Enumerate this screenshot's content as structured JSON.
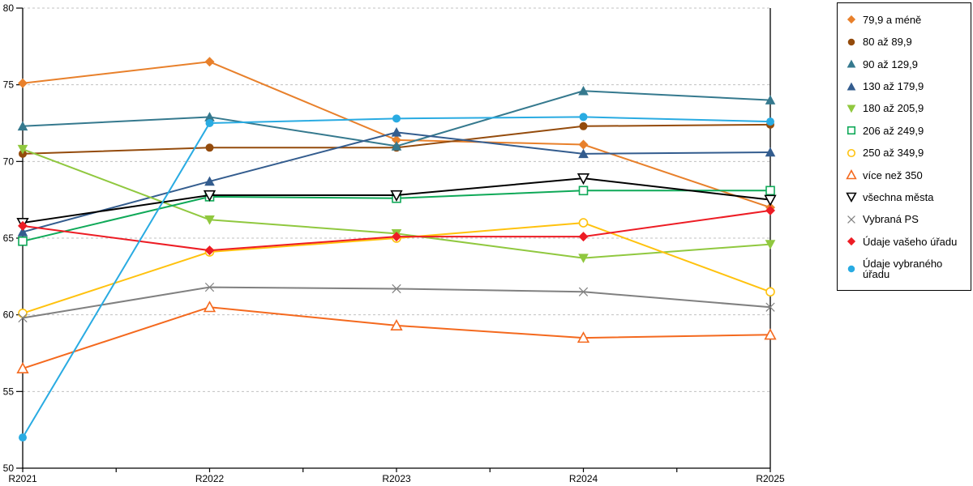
{
  "colors": {
    "background": "#FFFFFF",
    "grid": "#C0C0C0",
    "axis": "#000000",
    "legend_border": "#000000"
  },
  "chart_data": {
    "type": "line",
    "title": "",
    "xlabel": "",
    "ylabel": "",
    "x_labels": [
      "R2021",
      "R2022",
      "R2023",
      "R2024",
      "R2025"
    ],
    "ylim": [
      50,
      80
    ],
    "y_ticks": [
      50,
      55,
      60,
      65,
      70,
      75,
      80
    ],
    "grid": "horizontal-dashed",
    "legend_position": "right",
    "series": [
      {
        "name": "79,9 a méně",
        "color": "#E8802B",
        "marker": "diamond",
        "fill": true,
        "values": [
          75.1,
          76.5,
          71.4,
          71.1,
          67.0
        ]
      },
      {
        "name": "80 až 89,9",
        "color": "#944B0C",
        "marker": "circle",
        "fill": true,
        "values": [
          70.5,
          70.9,
          70.9,
          72.3,
          72.4
        ]
      },
      {
        "name": "90 až 129,9",
        "color": "#35798E",
        "marker": "triangle-up",
        "fill": true,
        "values": [
          72.3,
          72.9,
          71.0,
          74.6,
          74.0
        ]
      },
      {
        "name": "130 až 179,9",
        "color": "#335C8E",
        "marker": "triangle-up",
        "fill": true,
        "values": [
          65.4,
          68.7,
          71.9,
          70.5,
          70.6
        ]
      },
      {
        "name": "180 až 205,9",
        "color": "#90C83F",
        "marker": "triangle-down",
        "fill": true,
        "values": [
          70.8,
          66.2,
          65.3,
          63.7,
          64.6
        ]
      },
      {
        "name": "206 až 249,9",
        "color": "#0FA958",
        "marker": "square",
        "fill": false,
        "values": [
          64.8,
          67.7,
          67.6,
          68.1,
          68.1
        ]
      },
      {
        "name": "250 až 349,9",
        "color": "#FFC20E",
        "marker": "circle",
        "fill": false,
        "values": [
          60.1,
          64.1,
          65.0,
          66.0,
          61.5
        ]
      },
      {
        "name": "více než 350",
        "color": "#F4691E",
        "marker": "triangle-up",
        "fill": false,
        "values": [
          56.5,
          60.5,
          59.3,
          58.5,
          58.7
        ]
      },
      {
        "name": "všechna města",
        "color": "#000000",
        "marker": "triangle-down",
        "fill": false,
        "values": [
          66.0,
          67.8,
          67.8,
          68.9,
          67.5
        ]
      },
      {
        "name": "Vybraná PS",
        "color": "#808080",
        "marker": "x",
        "fill": false,
        "values": [
          59.8,
          61.8,
          61.7,
          61.5,
          60.5
        ]
      },
      {
        "name": "Údaje vašeho úřadu",
        "color": "#ED1C24",
        "marker": "diamond",
        "fill": true,
        "values": [
          65.8,
          64.2,
          65.1,
          65.1,
          66.8
        ]
      },
      {
        "name": "Údaje vybraného úřadu",
        "color": "#29ABE2",
        "marker": "circle",
        "fill": true,
        "values": [
          52.0,
          72.5,
          72.8,
          72.9,
          72.6
        ]
      }
    ]
  }
}
